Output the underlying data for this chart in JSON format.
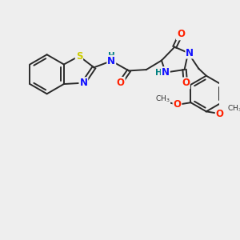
{
  "bg_color": "#eeeeee",
  "bond_color": "#2a2a2a",
  "N_color": "#1010ff",
  "O_color": "#ff2000",
  "S_color": "#cccc00",
  "H_color": "#008080",
  "figsize": [
    3.0,
    3.0
  ],
  "dpi": 100,
  "xlim": [
    0,
    10
  ],
  "ylim": [
    0,
    10
  ],
  "lw": 1.4,
  "fs": 8.5,
  "fs_small": 7.5
}
